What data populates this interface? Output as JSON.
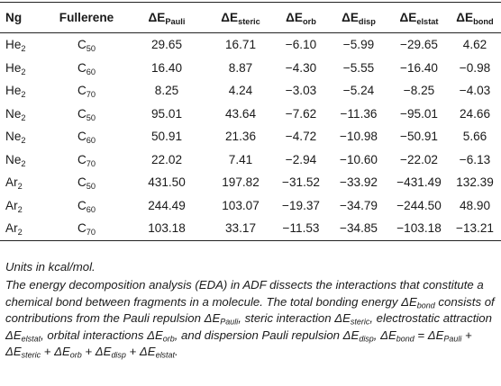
{
  "headers": {
    "ng": "Ng",
    "fullerene": "Fullerene",
    "pauli": "ΔE",
    "pauli_sub": "Pauli",
    "steric": "ΔE",
    "steric_sub": "steric",
    "orb": "ΔE",
    "orb_sub": "orb",
    "disp": "ΔE",
    "disp_sub": "disp",
    "elstat": "ΔE",
    "elstat_sub": "elstat",
    "bond": "ΔE",
    "bond_sub": "bond"
  },
  "rows": [
    {
      "ng": "He",
      "ng_sub": "2",
      "ful": "C",
      "ful_sub": "50",
      "pauli": "29.65",
      "steric": "16.71",
      "orb": "−6.10",
      "disp": "−5.99",
      "elstat": "−29.65",
      "bond": "4.62"
    },
    {
      "ng": "He",
      "ng_sub": "2",
      "ful": "C",
      "ful_sub": "60",
      "pauli": "16.40",
      "steric": "8.87",
      "orb": "−4.30",
      "disp": "−5.55",
      "elstat": "−16.40",
      "bond": "−0.98"
    },
    {
      "ng": "He",
      "ng_sub": "2",
      "ful": "C",
      "ful_sub": "70",
      "pauli": "8.25",
      "steric": "4.24",
      "orb": "−3.03",
      "disp": "−5.24",
      "elstat": "−8.25",
      "bond": "−4.03"
    },
    {
      "ng": "Ne",
      "ng_sub": "2",
      "ful": "C",
      "ful_sub": "50",
      "pauli": "95.01",
      "steric": "43.64",
      "orb": "−7.62",
      "disp": "−11.36",
      "elstat": "−95.01",
      "bond": "24.66"
    },
    {
      "ng": "Ne",
      "ng_sub": "2",
      "ful": "C",
      "ful_sub": "60",
      "pauli": "50.91",
      "steric": "21.36",
      "orb": "−4.72",
      "disp": "−10.98",
      "elstat": "−50.91",
      "bond": "5.66"
    },
    {
      "ng": "Ne",
      "ng_sub": "2",
      "ful": "C",
      "ful_sub": "70",
      "pauli": "22.02",
      "steric": "7.41",
      "orb": "−2.94",
      "disp": "−10.60",
      "elstat": "−22.02",
      "bond": "−6.13"
    },
    {
      "ng": "Ar",
      "ng_sub": "2",
      "ful": "C",
      "ful_sub": "50",
      "pauli": "431.50",
      "steric": "197.82",
      "orb": "−31.52",
      "disp": "−33.92",
      "elstat": "−431.49",
      "bond": "132.39"
    },
    {
      "ng": "Ar",
      "ng_sub": "2",
      "ful": "C",
      "ful_sub": "60",
      "pauli": "244.49",
      "steric": "103.07",
      "orb": "−19.37",
      "disp": "−34.79",
      "elstat": "−244.50",
      "bond": "48.90"
    },
    {
      "ng": "Ar",
      "ng_sub": "2",
      "ful": "C",
      "ful_sub": "70",
      "pauli": "103.18",
      "steric": "33.17",
      "orb": "−11.53",
      "disp": "−34.85",
      "elstat": "−103.18",
      "bond": "−13.21"
    }
  ],
  "notes": {
    "units": "Units in kcal/mol.",
    "desc_1": "The energy decomposition analysis (EDA) in ADF dissects the interactions that constitute a chemical bond between fragments in a molecule. The total bonding energy ",
    "de": "ΔE",
    "bond": "bond",
    "desc_2": " consists of contributions from the Pauli repulsion ",
    "pauli": "Pauli",
    "desc_3": ", steric interaction ",
    "steric": "steric",
    "desc_4": ", electrostatic attraction ",
    "elstat": "elstat",
    "desc_5": ", orbital interactions ",
    "orb": "orb",
    "desc_6": ", and dispersion Pauli repulsion ",
    "disp": "disp",
    "comma": ", ",
    "eq": " = ",
    "plus": " + ",
    "period": "."
  }
}
